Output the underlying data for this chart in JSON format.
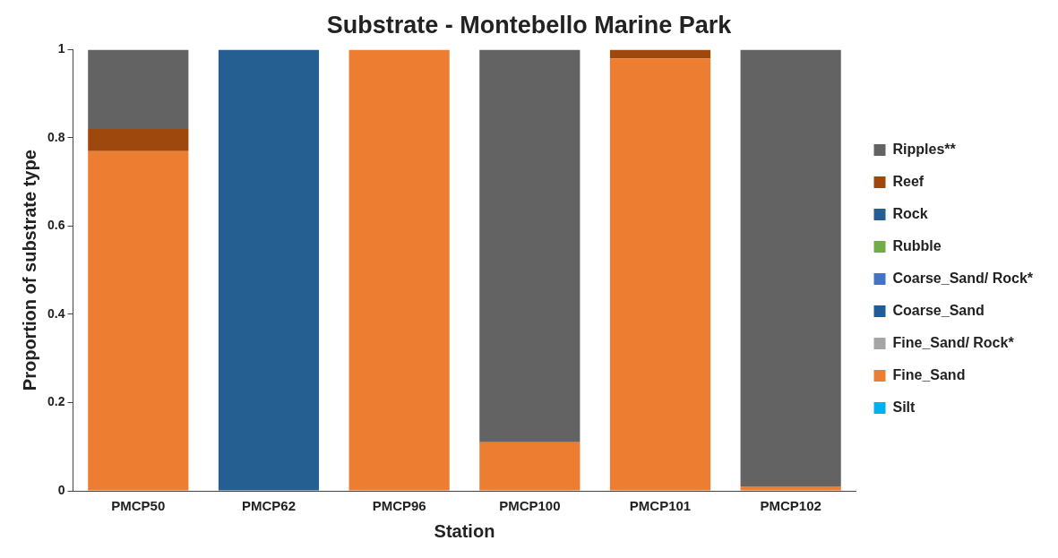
{
  "chart_data": {
    "type": "bar",
    "title": "Substrate - Montebello Marine Park",
    "xlabel": "Station",
    "ylabel": "Proportion of substrate type",
    "categories": [
      "PMCP50",
      "PMCP62",
      "PMCP96",
      "PMCP100",
      "PMCP101",
      "PMCP102"
    ],
    "stacked": true,
    "ylim": [
      0,
      1
    ],
    "yticks": [
      0,
      0.2,
      0.4,
      0.6,
      0.8,
      1
    ],
    "grid": false,
    "legend": "right",
    "series": [
      {
        "name": "Silt",
        "color": "#00b0f0",
        "values": [
          0,
          0,
          0,
          0,
          0,
          0
        ]
      },
      {
        "name": "Fine_Sand",
        "color": "#ed7d31",
        "values": [
          0.77,
          0,
          1,
          0.11,
          0.98,
          0.01
        ]
      },
      {
        "name": "Fine_Sand/ Rock*",
        "color": "#a5a5a5",
        "values": [
          0,
          0,
          0,
          0,
          0,
          0
        ]
      },
      {
        "name": "Coarse_Sand",
        "color": "#1f5c99",
        "values": [
          0,
          0,
          0,
          0,
          0,
          0
        ]
      },
      {
        "name": "Coarse_Sand/ Rock*",
        "color": "#4472c4",
        "values": [
          0,
          0,
          0,
          0,
          0,
          0
        ]
      },
      {
        "name": "Rubble",
        "color": "#70ad47",
        "values": [
          0,
          0,
          0,
          0,
          0,
          0
        ]
      },
      {
        "name": "Rock",
        "color": "#255e91",
        "values": [
          0,
          1,
          0,
          0,
          0,
          0
        ]
      },
      {
        "name": "Reef",
        "color": "#9e480e",
        "values": [
          0.05,
          0,
          0,
          0,
          0.02,
          0
        ]
      },
      {
        "name": "Ripples**",
        "color": "#636363",
        "values": [
          0.18,
          0,
          0,
          0.89,
          0,
          0.99
        ]
      }
    ]
  }
}
